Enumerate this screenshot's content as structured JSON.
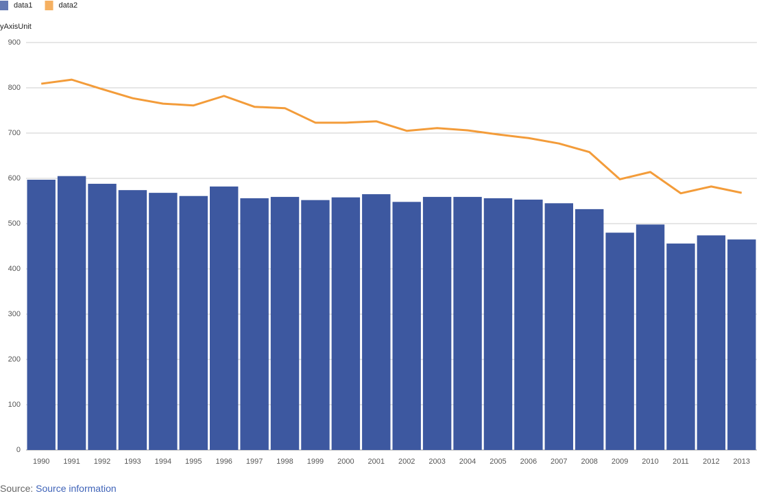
{
  "chart_data": {
    "type": "bar-line",
    "y_axis_label": "yAxisUnit",
    "categories": [
      "1990",
      "1991",
      "1992",
      "1993",
      "1994",
      "1995",
      "1996",
      "1997",
      "1998",
      "1999",
      "2000",
      "2001",
      "2002",
      "2003",
      "2004",
      "2005",
      "2006",
      "2007",
      "2008",
      "2009",
      "2010",
      "2011",
      "2012",
      "2013"
    ],
    "series": [
      {
        "name": "data1",
        "type": "bar",
        "color": "#3d58a0",
        "values": [
          597,
          605,
          588,
          574,
          568,
          561,
          582,
          556,
          559,
          552,
          558,
          565,
          548,
          559,
          559,
          556,
          553,
          545,
          532,
          480,
          498,
          456,
          474,
          465
        ]
      },
      {
        "name": "data2",
        "type": "line",
        "color": "#f39c3a",
        "values": [
          809,
          818,
          797,
          777,
          765,
          761,
          782,
          758,
          755,
          723,
          723,
          726,
          705,
          711,
          706,
          697,
          689,
          677,
          658,
          598,
          614,
          567,
          582,
          568
        ]
      }
    ],
    "ylim": [
      0,
      900
    ],
    "yticks": [
      0,
      100,
      200,
      300,
      400,
      500,
      600,
      700,
      800,
      900
    ],
    "grid": true
  },
  "source": {
    "label": "Source:",
    "link": "Source information"
  }
}
